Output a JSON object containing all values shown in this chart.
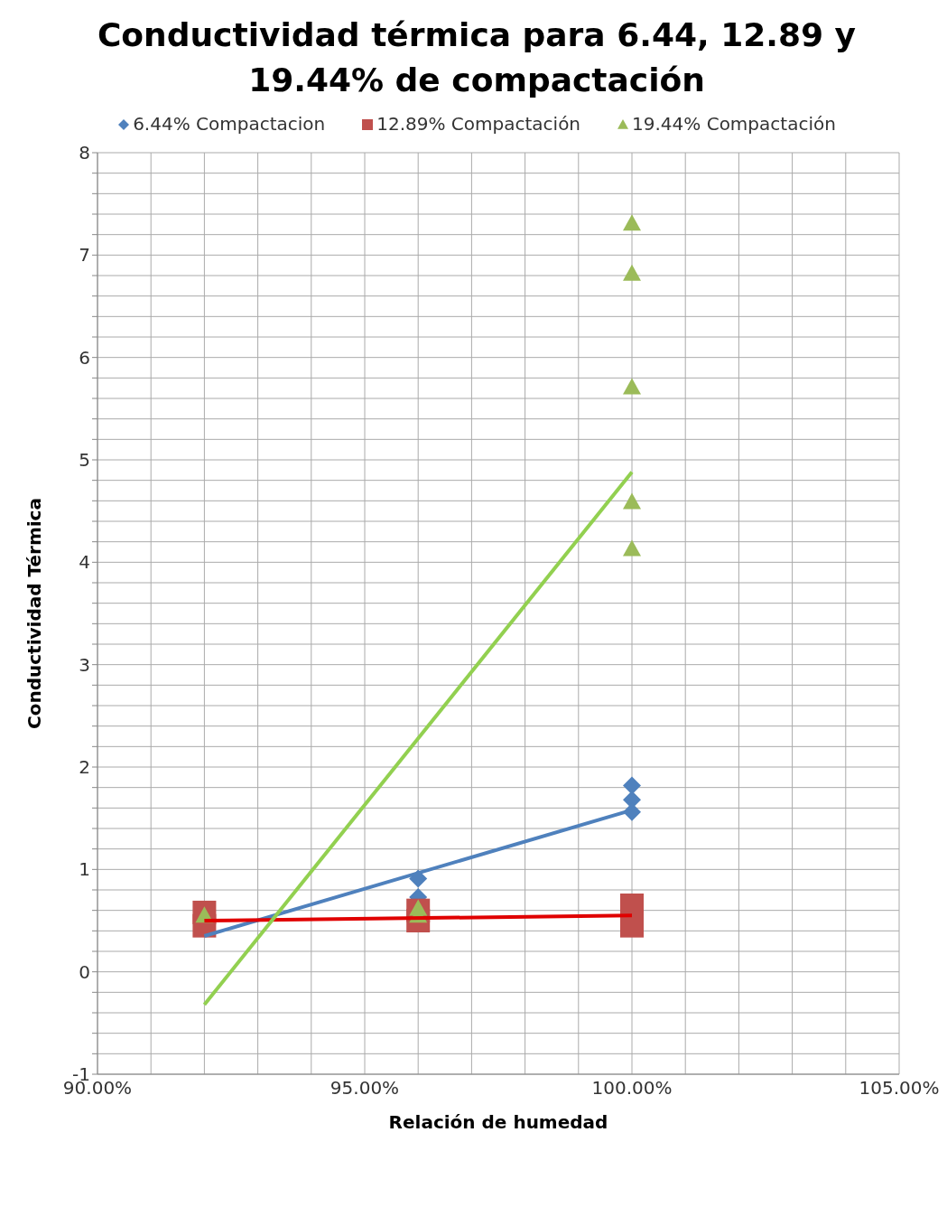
{
  "chart_data": {
    "type": "scatter",
    "title": "Conductividad térmica para 6.44, 12.89 y 19.44% de compactación",
    "xlabel": "Relación de humedad",
    "ylabel": "Conductividad Térmica",
    "legend": "top",
    "grid": true,
    "xlim": [
      90,
      105
    ],
    "ylim": [
      -1,
      8
    ],
    "xticks": [
      {
        "value": 90,
        "label": "90.00%"
      },
      {
        "value": 91,
        "label": null
      },
      {
        "value": 92,
        "label": null
      },
      {
        "value": 93,
        "label": null
      },
      {
        "value": 94,
        "label": null
      },
      {
        "value": 95,
        "label": "95.00%"
      },
      {
        "value": 96,
        "label": null
      },
      {
        "value": 97,
        "label": null
      },
      {
        "value": 98,
        "label": null
      },
      {
        "value": 99,
        "label": null
      },
      {
        "value": 100,
        "label": "100.00%"
      },
      {
        "value": 101,
        "label": null
      },
      {
        "value": 102,
        "label": null
      },
      {
        "value": 103,
        "label": null
      },
      {
        "value": 104,
        "label": null
      },
      {
        "value": 105,
        "label": "105.00%"
      }
    ],
    "yticks": [
      -1,
      {
        "value": -0.8,
        "label": null
      },
      {
        "value": -0.6,
        "label": null
      },
      {
        "value": -0.4,
        "label": null
      },
      {
        "value": -0.2,
        "label": null
      },
      0,
      {
        "value": 0.2,
        "label": null
      },
      {
        "value": 0.4,
        "label": null
      },
      {
        "value": 0.6,
        "label": null
      },
      {
        "value": 0.8,
        "label": null
      },
      1,
      {
        "value": 1.2,
        "label": null
      },
      {
        "value": 1.4,
        "label": null
      },
      {
        "value": 1.6,
        "label": null
      },
      {
        "value": 1.8,
        "label": null
      },
      2,
      {
        "value": 2.2,
        "label": null
      },
      {
        "value": 2.4,
        "label": null
      },
      {
        "value": 2.6,
        "label": null
      },
      {
        "value": 2.8,
        "label": null
      },
      3,
      {
        "value": 3.2,
        "label": null
      },
      {
        "value": 3.4,
        "label": null
      },
      {
        "value": 3.6,
        "label": null
      },
      {
        "value": 3.8,
        "label": null
      },
      4,
      {
        "value": 4.2,
        "label": null
      },
      {
        "value": 4.4,
        "label": null
      },
      {
        "value": 4.6,
        "label": null
      },
      {
        "value": 4.8,
        "label": null
      },
      5,
      {
        "value": 5.2,
        "label": null
      },
      {
        "value": 5.4,
        "label": null
      },
      {
        "value": 5.6,
        "label": null
      },
      {
        "value": 5.8,
        "label": null
      },
      6,
      {
        "value": 6.2,
        "label": null
      },
      {
        "value": 6.4,
        "label": null
      },
      {
        "value": 6.6,
        "label": null
      },
      {
        "value": 6.8,
        "label": null
      },
      7,
      {
        "value": 7.2,
        "label": null
      },
      {
        "value": 7.4,
        "label": null
      },
      {
        "value": 7.6,
        "label": null
      },
      {
        "value": 7.8,
        "label": null
      },
      8
    ],
    "series": [
      {
        "name": "6.44% Compactacion",
        "color": "#4f81bd",
        "marker": "diamond",
        "x": [
          96,
          96,
          100,
          100,
          100
        ],
        "values": [
          0.91,
          0.73,
          1.82,
          1.68,
          1.56
        ]
      },
      {
        "name": "12.89% Compactación",
        "color": "#c0504d",
        "marker": "square",
        "x": [
          92,
          92,
          96,
          96,
          100,
          100
        ],
        "values": [
          0.45,
          0.58,
          0.5,
          0.6,
          0.45,
          0.65
        ]
      },
      {
        "name": "19.44% Compactación",
        "color": "#9bbb59",
        "marker": "triangle",
        "x": [
          92,
          96,
          96,
          100,
          100,
          100,
          100,
          100
        ],
        "values": [
          0.55,
          0.62,
          0.55,
          7.31,
          6.82,
          5.71,
          4.59,
          4.13
        ]
      },
      {
        "type": "line",
        "color": "#4f81bd",
        "marker": "none",
        "x": [
          92,
          100
        ],
        "values": [
          0.35,
          1.58
        ]
      },
      {
        "type": "line",
        "color": "#e00000",
        "marker": "none",
        "x": [
          92,
          100
        ],
        "values": [
          0.5,
          0.55
        ]
      },
      {
        "type": "line",
        "color": "#92d050",
        "marker": "none",
        "x": [
          92,
          100
        ],
        "values": [
          -0.32,
          4.88
        ]
      }
    ]
  }
}
